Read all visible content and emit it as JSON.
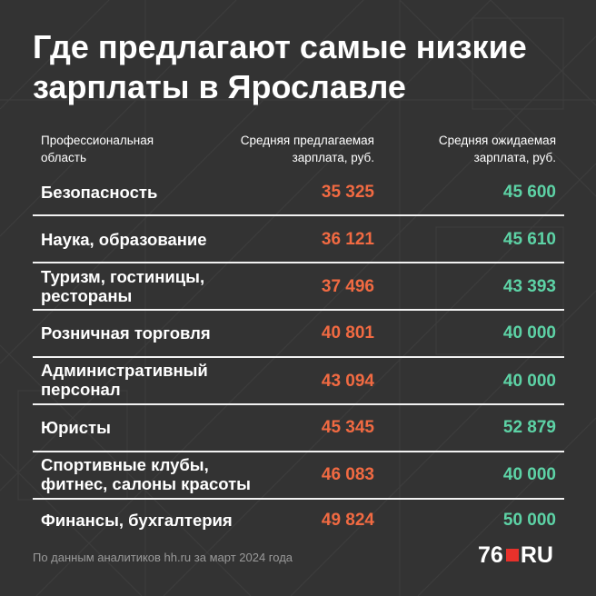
{
  "title_line1": "Где предлагают самые низкие",
  "title_line2": "зарплаты в Ярославле",
  "colors": {
    "background": "#333333",
    "offered": "#f16a42",
    "expected": "#5dd3a6",
    "text": "#ffffff",
    "logo_accent": "#e8312b"
  },
  "chart_data": {
    "type": "table",
    "columns": [
      "Профессиональная область",
      "Средняя предлагаемая зарплата, руб.",
      "Средняя ожидаемая зарплата, руб."
    ],
    "header": {
      "area_line1": "Профессиональная",
      "area_line2": "область",
      "offered_line1": "Средняя предлагаемая",
      "offered_line2": "зарплата, руб.",
      "expected_line1": "Средняя ожидаемая",
      "expected_line2": "зарплата, руб."
    },
    "rows": [
      {
        "label_line1": "Безопасность",
        "label_line2": "",
        "offered": "35 325",
        "expected": "45 600"
      },
      {
        "label_line1": "Наука, образование",
        "label_line2": "",
        "offered": "36 121",
        "expected": "45 610"
      },
      {
        "label_line1": "Туризм, гостиницы,",
        "label_line2": "рестораны",
        "offered": "37 496",
        "expected": "43 393"
      },
      {
        "label_line1": "Розничная торговля",
        "label_line2": "",
        "offered": "40 801",
        "expected": "40 000"
      },
      {
        "label_line1": "Административный",
        "label_line2": "персонал",
        "offered": "43 094",
        "expected": "40 000"
      },
      {
        "label_line1": "Юристы",
        "label_line2": "",
        "offered": "45 345",
        "expected": "52 879"
      },
      {
        "label_line1": "Спортивные клубы,",
        "label_line2": "фитнес, салоны красоты",
        "offered": "46 083",
        "expected": "40 000"
      },
      {
        "label_line1": "Финансы, бухгалтерия",
        "label_line2": "",
        "offered": "49 824",
        "expected": "50 000"
      }
    ]
  },
  "footer": "По данным аналитиков hh.ru за март 2024 года",
  "logo": {
    "left": "76",
    "right": "RU"
  }
}
